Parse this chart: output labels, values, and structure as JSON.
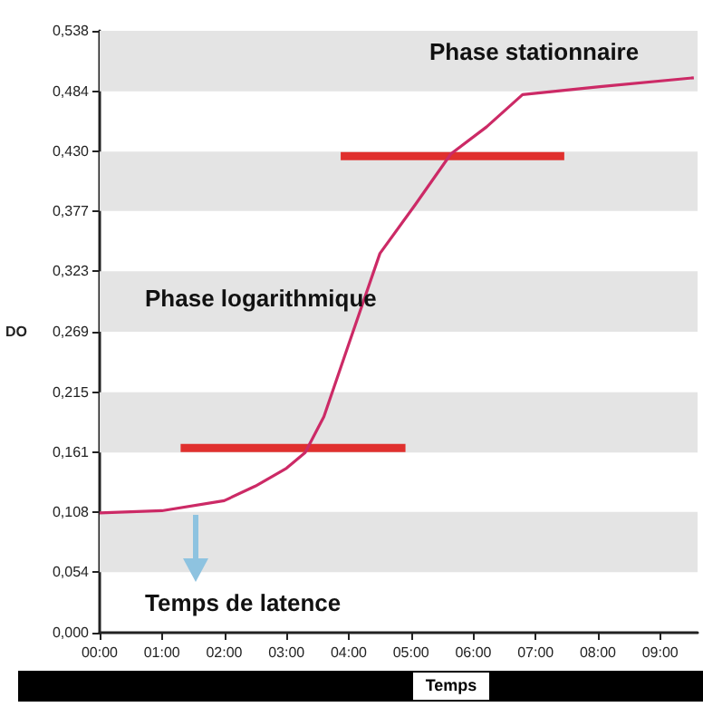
{
  "chart_data": {
    "type": "line",
    "xlabel": "Temps",
    "ylabel": "DO",
    "annotations": [
      "Phase stationnaire",
      "Phase logarithmique",
      "Temps de latence"
    ],
    "series": [
      {
        "color": "#cc2a66",
        "x": [
          0,
          1,
          2,
          2.5,
          3,
          3.3,
          3.6,
          4,
          4.5,
          5.06,
          5.64,
          6.21,
          6.79,
          8.03,
          9.54
        ],
        "values": [
          0.107,
          0.109,
          0.118,
          0.131,
          0.147,
          0.161,
          0.193,
          0.258,
          0.339,
          0.382,
          0.428,
          0.452,
          0.481,
          0.488,
          0.496
        ]
      },
      {
        "color": "#e0302e",
        "x": [
          1.3,
          4.91
        ],
        "values": [
          0.165,
          0.165
        ]
      },
      {
        "color": "#e0302e",
        "x": [
          3.87,
          7.46
        ],
        "values": [
          0.426,
          0.426
        ]
      }
    ],
    "xlim": [
      0,
      9.6
    ],
    "xticks": [
      {
        "value": 0,
        "label": "00:00"
      },
      {
        "value": 1,
        "label": "01:00"
      },
      {
        "value": 2,
        "label": "02:00"
      },
      {
        "value": 3,
        "label": "03:00"
      },
      {
        "value": 4,
        "label": "04:00"
      },
      {
        "value": 5,
        "label": "05:00"
      },
      {
        "value": 6,
        "label": "06:00"
      },
      {
        "value": 7,
        "label": "07:00"
      },
      {
        "value": 8,
        "label": "08:00"
      },
      {
        "value": 9,
        "label": "09:00"
      }
    ],
    "ylim": [
      0,
      0.538
    ],
    "yticks": [
      {
        "value": 0,
        "label": "0,000"
      },
      {
        "value": 0.054,
        "label": "0,054"
      },
      {
        "value": 0.108,
        "label": "0,108"
      },
      {
        "value": 0.161,
        "label": "0,161"
      },
      {
        "value": 0.215,
        "label": "0,215"
      },
      {
        "value": 0.269,
        "label": "0,269"
      },
      {
        "value": 0.323,
        "label": "0,323"
      },
      {
        "value": 0.377,
        "label": "0,377"
      },
      {
        "value": 0.43,
        "label": "0,430"
      },
      {
        "value": 0.484,
        "label": "0,484"
      },
      {
        "value": 0.538,
        "label": "0,538"
      }
    ],
    "bands": [
      {
        "axis": "y",
        "from": 0.054,
        "to": 0.108,
        "color": "#e4e4e4"
      },
      {
        "axis": "y",
        "from": 0.161,
        "to": 0.215,
        "color": "#e4e4e4"
      },
      {
        "axis": "y",
        "from": 0.269,
        "to": 0.323,
        "color": "#e4e4e4"
      },
      {
        "axis": "y",
        "from": 0.377,
        "to": 0.43,
        "color": "#e4e4e4"
      },
      {
        "axis": "y",
        "from": 0.484,
        "to": 0.538,
        "color": "#e4e4e4"
      }
    ],
    "marker": "none",
    "line_style": "solid"
  }
}
